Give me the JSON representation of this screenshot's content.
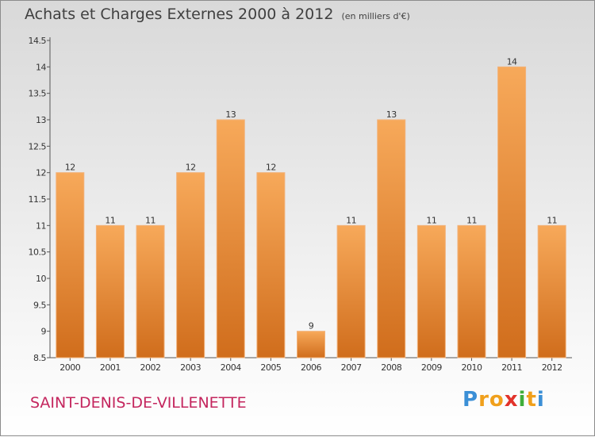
{
  "title": "Achats et Charges Externes 2000 à 2012",
  "subtitle": "(en milliers d'€)",
  "commune": "SAINT-DENIS-DE-VILLENETTE",
  "logo": {
    "text": "Proxiti",
    "letters": [
      {
        "char": "P",
        "color": "#3b8fd6"
      },
      {
        "char": "r",
        "color": "#f0a01c"
      },
      {
        "char": "o",
        "color": "#f0a01c"
      },
      {
        "char": "x",
        "color": "#e2332b"
      },
      {
        "char": "i",
        "color": "#3fae3a"
      },
      {
        "char": "t",
        "color": "#f0a01c"
      },
      {
        "char": "i",
        "color": "#3b8fd6"
      }
    ]
  },
  "chart_data": {
    "type": "bar",
    "categories": [
      "2000",
      "2001",
      "2002",
      "2003",
      "2004",
      "2005",
      "2006",
      "2007",
      "2008",
      "2009",
      "2010",
      "2011",
      "2012"
    ],
    "values": [
      12,
      11,
      11,
      12,
      13,
      12,
      9,
      11,
      13,
      11,
      11,
      14,
      11
    ],
    "data_labels": [
      "12",
      "11",
      "11",
      "12",
      "13",
      "12",
      "9",
      "11",
      "13",
      "11",
      "11",
      "14",
      "11"
    ],
    "ylim": [
      8.5,
      14.5
    ],
    "yticks": [
      "8.5",
      "9",
      "9.5",
      "10",
      "10.5",
      "11",
      "11.5",
      "12",
      "12.5",
      "13",
      "13.5",
      "14",
      "14.5"
    ],
    "xlabel": "",
    "ylabel": "",
    "grid": false,
    "legend": "none",
    "bar_color": "#f0913a"
  }
}
